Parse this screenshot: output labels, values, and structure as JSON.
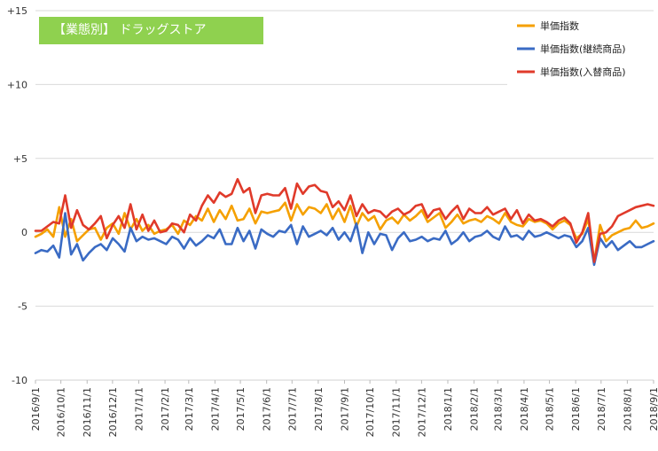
{
  "chart_data": {
    "type": "line",
    "title": "【業態別】 ドラッグストア",
    "y_ticks": [
      "+15",
      "+10",
      "+5",
      "0",
      "-5",
      "-10"
    ],
    "ylim": [
      -10,
      15
    ],
    "x_ticks": [
      "2016/9/1",
      "2016/10/1",
      "2016/11/1",
      "2016/12/1",
      "2017/1/1",
      "2017/2/1",
      "2017/3/1",
      "2017/4/1",
      "2017/5/1",
      "2017/6/1",
      "2017/7/1",
      "2017/8/1",
      "2017/9/1",
      "2017/10/1",
      "2017/11/1",
      "2017/12/1",
      "2018/1/1",
      "2018/2/1",
      "2018/3/1",
      "2018/4/1",
      "2018/5/1",
      "2018/6/1",
      "2018/7/1",
      "2018/8/1",
      "2018/9/1"
    ],
    "x_range": [
      "2016/9/1",
      "2018/9/1"
    ],
    "legend_position": "top-right",
    "series": [
      {
        "name": "単価指数",
        "color": "#f5a000",
        "values": [
          -0.3,
          -0.1,
          0.2,
          -0.3,
          1.7,
          -0.3,
          0.9,
          -0.6,
          -0.2,
          0.2,
          0.3,
          -0.5,
          0.3,
          0.6,
          -0.1,
          1.3,
          0.2,
          0.9,
          0.1,
          0.5,
          -0.1,
          0.1,
          0.2,
          0.5,
          -0.1,
          0.8,
          0.5,
          1.1,
          0.8,
          1.6,
          0.7,
          1.5,
          0.9,
          1.8,
          0.8,
          0.9,
          1.6,
          0.6,
          1.4,
          1.3,
          1.4,
          1.5,
          2.0,
          0.8,
          1.9,
          1.2,
          1.7,
          1.6,
          1.3,
          1.9,
          0.9,
          1.6,
          0.7,
          1.8,
          0.4,
          1.3,
          0.8,
          1.1,
          0.2,
          0.8,
          1.0,
          0.6,
          1.2,
          0.8,
          1.1,
          1.5,
          0.7,
          1.0,
          1.3,
          0.3,
          0.7,
          1.2,
          0.6,
          0.8,
          0.9,
          0.7,
          1.1,
          0.9,
          0.6,
          1.3,
          0.7,
          0.5,
          0.4,
          0.9,
          0.7,
          0.8,
          0.6,
          0.2,
          0.6,
          0.8,
          0.5,
          -0.4,
          -0.1,
          0.9,
          -2.0,
          0.5,
          -0.6,
          -0.2,
          0.0,
          0.2,
          0.3,
          0.8,
          0.3,
          0.4,
          0.6
        ]
      },
      {
        "name": "単価指数(継続商品)",
        "color": "#3a6bc4",
        "values": [
          -1.4,
          -1.2,
          -1.3,
          -0.9,
          -1.7,
          1.3,
          -1.5,
          -0.8,
          -1.9,
          -1.4,
          -1.0,
          -0.8,
          -1.2,
          -0.4,
          -0.8,
          -1.3,
          0.3,
          -0.6,
          -0.3,
          -0.5,
          -0.4,
          -0.6,
          -0.8,
          -0.3,
          -0.5,
          -1.1,
          -0.4,
          -0.9,
          -0.6,
          -0.2,
          -0.4,
          0.2,
          -0.8,
          -0.8,
          0.3,
          -0.6,
          0.1,
          -1.1,
          0.2,
          -0.1,
          -0.3,
          0.1,
          0.0,
          0.5,
          -0.8,
          0.4,
          -0.3,
          -0.1,
          0.1,
          -0.2,
          0.3,
          -0.5,
          0.0,
          -0.6,
          0.6,
          -1.4,
          0.0,
          -0.8,
          -0.1,
          -0.2,
          -1.2,
          -0.4,
          0.0,
          -0.6,
          -0.5,
          -0.3,
          -0.6,
          -0.4,
          -0.5,
          0.1,
          -0.8,
          -0.5,
          0.0,
          -0.6,
          -0.3,
          -0.2,
          0.1,
          -0.3,
          -0.5,
          0.4,
          -0.3,
          -0.2,
          -0.5,
          0.1,
          -0.3,
          -0.2,
          0.0,
          -0.2,
          -0.4,
          -0.2,
          -0.3,
          -1.0,
          -0.6,
          0.3,
          -2.2,
          -0.4,
          -1.0,
          -0.6,
          -1.2,
          -0.9,
          -0.6,
          -1.0,
          -1.0,
          -0.8,
          -0.6
        ]
      },
      {
        "name": "単価指数(入替商品)",
        "color": "#e03a2a",
        "values": [
          0.1,
          0.1,
          0.4,
          0.7,
          0.6,
          2.5,
          0.3,
          1.5,
          0.5,
          0.2,
          0.6,
          1.1,
          -0.4,
          0.5,
          1.1,
          0.3,
          1.9,
          0.2,
          1.2,
          0.1,
          0.8,
          0.0,
          0.1,
          0.6,
          0.5,
          0.0,
          1.2,
          0.8,
          1.8,
          2.5,
          2.0,
          2.7,
          2.4,
          2.6,
          3.6,
          2.7,
          3.0,
          1.3,
          2.5,
          2.6,
          2.5,
          2.5,
          3.0,
          1.6,
          3.3,
          2.6,
          3.1,
          3.2,
          2.8,
          2.7,
          1.7,
          2.1,
          1.5,
          2.5,
          1.1,
          1.9,
          1.3,
          1.5,
          1.4,
          1.0,
          1.4,
          1.6,
          1.2,
          1.4,
          1.8,
          1.9,
          1.0,
          1.5,
          1.6,
          0.9,
          1.4,
          1.8,
          0.9,
          1.6,
          1.3,
          1.3,
          1.7,
          1.2,
          1.4,
          1.6,
          0.9,
          1.5,
          0.6,
          1.2,
          0.8,
          0.9,
          0.7,
          0.4,
          0.8,
          1.0,
          0.6,
          -0.7,
          0.0,
          1.3,
          -2.0,
          -0.1,
          0.0,
          0.4,
          1.1,
          1.3,
          1.5,
          1.7,
          1.8,
          1.9,
          1.8
        ]
      }
    ]
  }
}
